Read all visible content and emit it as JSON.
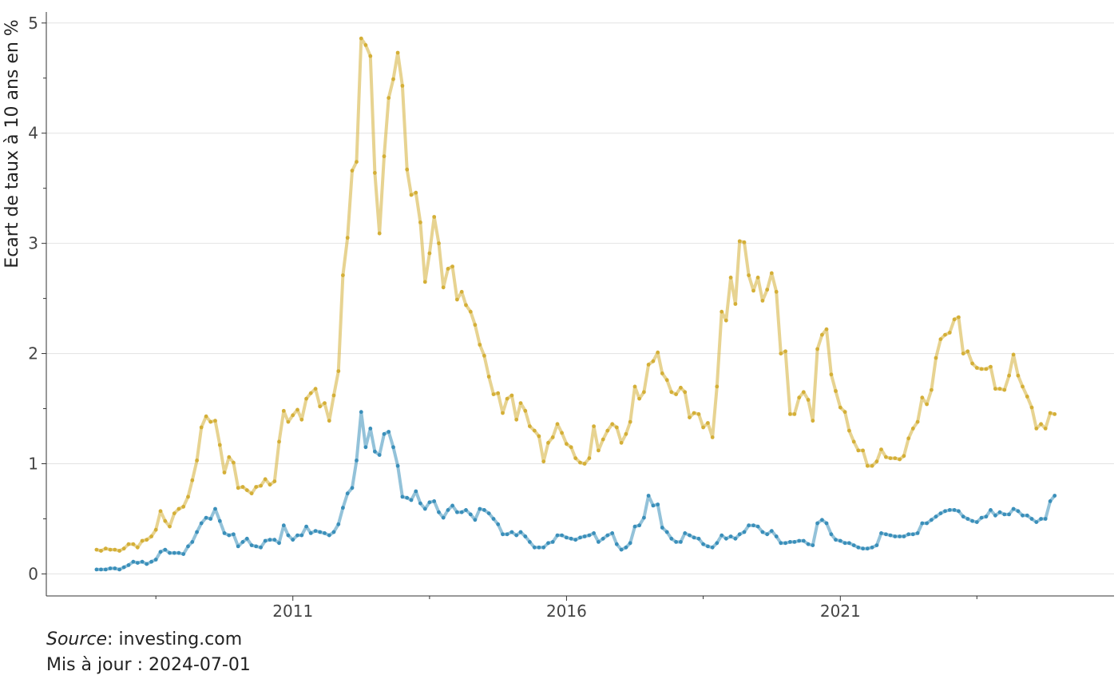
{
  "chart_data": {
    "type": "line",
    "ylabel": "Ecart de taux à 10 ans en %",
    "ylim": [
      -0.2,
      5.1
    ],
    "yticks": [
      "0",
      "1",
      "2",
      "3",
      "4",
      "5"
    ],
    "xlim": [
      "2006-07-01",
      "2026-01-01"
    ],
    "xticks": [
      "2011",
      "2016",
      "2021"
    ],
    "xtick_dates": [
      "2011-01-01",
      "2016-01-01",
      "2021-01-01"
    ],
    "x_minor_tick_dates": [
      "2008-07-01",
      "2013-07-01",
      "2018-07-01",
      "2023-07-01"
    ],
    "grid": "horizontal",
    "x_start": "2007-06",
    "x_step": "month",
    "series": [
      {
        "color": "#d4af37",
        "values": [
          0.22,
          0.21,
          0.23,
          0.22,
          0.22,
          0.21,
          0.23,
          0.27,
          0.27,
          0.24,
          0.3,
          0.31,
          0.34,
          0.4,
          0.57,
          0.48,
          0.43,
          0.55,
          0.59,
          0.61,
          0.7,
          0.85,
          1.03,
          1.33,
          1.43,
          1.38,
          1.39,
          1.17,
          0.92,
          1.06,
          1.01,
          0.78,
          0.79,
          0.76,
          0.73,
          0.79,
          0.8,
          0.86,
          0.81,
          0.84,
          1.2,
          1.48,
          1.38,
          1.44,
          1.49,
          1.4,
          1.59,
          1.64,
          1.68,
          1.52,
          1.55,
          1.39,
          1.62,
          1.84,
          2.71,
          3.05,
          3.66,
          3.74,
          4.86,
          4.8,
          4.7,
          3.64,
          3.09,
          3.79,
          4.32,
          4.49,
          4.73,
          4.43,
          3.67,
          3.44,
          3.46,
          3.19,
          2.65,
          2.91,
          3.24,
          3.0,
          2.6,
          2.77,
          2.79,
          2.49,
          2.56,
          2.44,
          2.38,
          2.26,
          2.08,
          1.98,
          1.79,
          1.63,
          1.64,
          1.46,
          1.59,
          1.62,
          1.4,
          1.55,
          1.48,
          1.34,
          1.3,
          1.25,
          1.02,
          1.19,
          1.24,
          1.36,
          1.28,
          1.18,
          1.15,
          1.05,
          1.01,
          1.0,
          1.05,
          1.34,
          1.12,
          1.22,
          1.3,
          1.36,
          1.33,
          1.19,
          1.27,
          1.38,
          1.7,
          1.59,
          1.65,
          1.9,
          1.93,
          2.01,
          1.82,
          1.76,
          1.65,
          1.63,
          1.69,
          1.65,
          1.42,
          1.46,
          1.45,
          1.33,
          1.37,
          1.24,
          1.7,
          2.38,
          2.3,
          2.69,
          2.45,
          3.02,
          3.01,
          2.71,
          2.57,
          2.69,
          2.48,
          2.58,
          2.73,
          2.56,
          2.0,
          2.02,
          1.45,
          1.45,
          1.6,
          1.65,
          1.58,
          1.39,
          2.04,
          2.17,
          2.22,
          1.81,
          1.66,
          1.51,
          1.47,
          1.3,
          1.2,
          1.12,
          1.12,
          0.98,
          0.98,
          1.02,
          1.13,
          1.06,
          1.05,
          1.05,
          1.04,
          1.07,
          1.23,
          1.32,
          1.38,
          1.6,
          1.54,
          1.67,
          1.96,
          2.13,
          2.17,
          2.19,
          2.31,
          2.33,
          2.0,
          2.02,
          1.91,
          1.87,
          1.86,
          1.86,
          1.88,
          1.68,
          1.68,
          1.67,
          1.8,
          1.99,
          1.8,
          1.7,
          1.61,
          1.51,
          1.32,
          1.36,
          1.32,
          1.46,
          1.45
        ]
      },
      {
        "color": "#3a8fba",
        "values": [
          0.04,
          0.04,
          0.04,
          0.05,
          0.05,
          0.04,
          0.06,
          0.08,
          0.11,
          0.1,
          0.11,
          0.09,
          0.11,
          0.13,
          0.2,
          0.22,
          0.19,
          0.19,
          0.19,
          0.18,
          0.25,
          0.29,
          0.38,
          0.46,
          0.51,
          0.5,
          0.59,
          0.48,
          0.37,
          0.35,
          0.36,
          0.25,
          0.29,
          0.32,
          0.26,
          0.25,
          0.24,
          0.3,
          0.31,
          0.31,
          0.28,
          0.44,
          0.35,
          0.31,
          0.35,
          0.35,
          0.43,
          0.37,
          0.39,
          0.38,
          0.37,
          0.35,
          0.38,
          0.45,
          0.6,
          0.73,
          0.78,
          1.03,
          1.47,
          1.15,
          1.32,
          1.11,
          1.08,
          1.27,
          1.29,
          1.15,
          0.98,
          0.7,
          0.69,
          0.67,
          0.75,
          0.64,
          0.59,
          0.65,
          0.66,
          0.56,
          0.51,
          0.58,
          0.62,
          0.56,
          0.56,
          0.58,
          0.54,
          0.49,
          0.59,
          0.58,
          0.55,
          0.5,
          0.45,
          0.36,
          0.36,
          0.38,
          0.35,
          0.38,
          0.34,
          0.29,
          0.24,
          0.24,
          0.24,
          0.28,
          0.29,
          0.35,
          0.35,
          0.33,
          0.32,
          0.31,
          0.33,
          0.34,
          0.35,
          0.37,
          0.29,
          0.32,
          0.35,
          0.37,
          0.27,
          0.22,
          0.24,
          0.28,
          0.43,
          0.44,
          0.51,
          0.71,
          0.62,
          0.63,
          0.42,
          0.38,
          0.32,
          0.29,
          0.29,
          0.37,
          0.35,
          0.33,
          0.32,
          0.27,
          0.25,
          0.24,
          0.28,
          0.35,
          0.32,
          0.34,
          0.32,
          0.36,
          0.38,
          0.44,
          0.44,
          0.43,
          0.38,
          0.36,
          0.39,
          0.34,
          0.28,
          0.28,
          0.29,
          0.29,
          0.3,
          0.3,
          0.27,
          0.26,
          0.46,
          0.49,
          0.46,
          0.36,
          0.31,
          0.3,
          0.28,
          0.28,
          0.26,
          0.24,
          0.23,
          0.23,
          0.24,
          0.26,
          0.37,
          0.36,
          0.35,
          0.34,
          0.34,
          0.34,
          0.36,
          0.36,
          0.37,
          0.46,
          0.46,
          0.49,
          0.52,
          0.55,
          0.57,
          0.58,
          0.58,
          0.57,
          0.52,
          0.5,
          0.48,
          0.47,
          0.51,
          0.52,
          0.58,
          0.53,
          0.56,
          0.54,
          0.54,
          0.59,
          0.57,
          0.53,
          0.53,
          0.5,
          0.47,
          0.5,
          0.5,
          0.66,
          0.71
        ]
      }
    ]
  },
  "caption": {
    "source_label": "Source",
    "source_text": ": investing.com",
    "updated": "Mis à jour : 2024-07-01"
  }
}
